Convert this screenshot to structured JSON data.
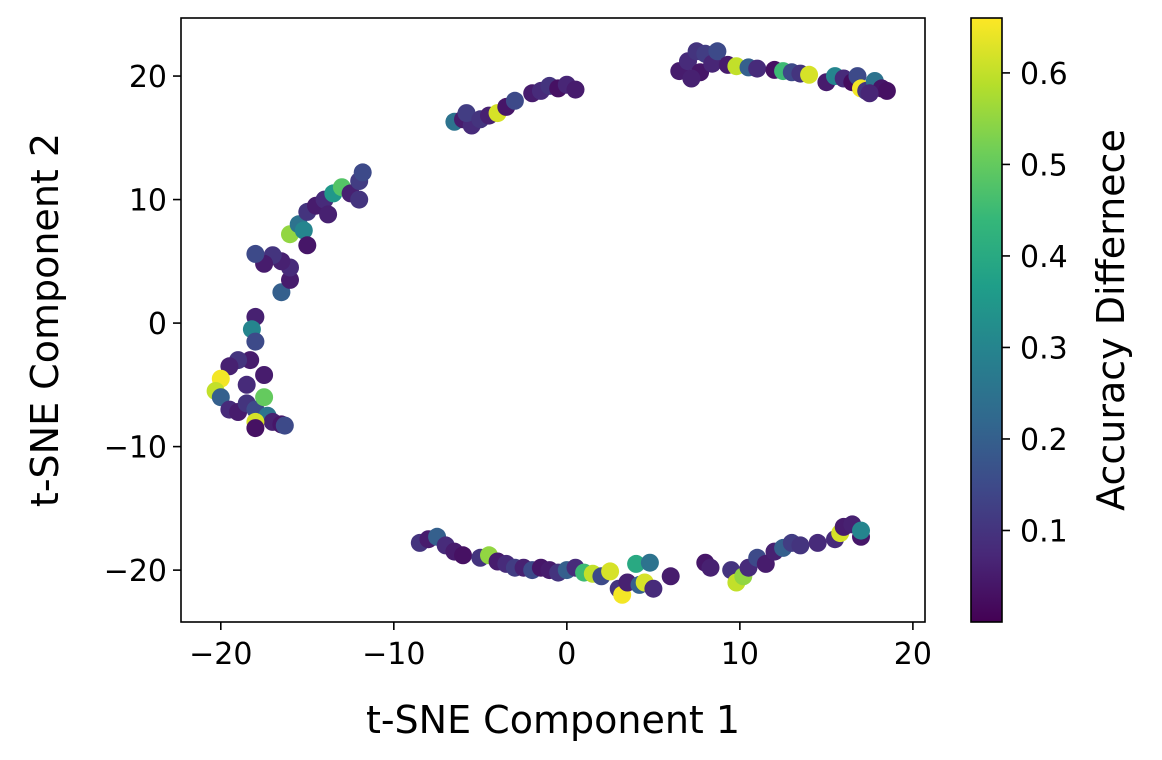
{
  "chart_data": {
    "type": "scatter",
    "title": "",
    "xlabel": "t-SNE Component 1",
    "ylabel": "t-SNE Component 2",
    "xlim": [
      -22.3,
      20.7
    ],
    "ylim": [
      -24.2,
      24.7
    ],
    "xticks": [
      {
        "value": -20,
        "label": "−20"
      },
      {
        "value": -10,
        "label": "−10"
      },
      {
        "value": 0,
        "label": "0"
      },
      {
        "value": 10,
        "label": "10"
      },
      {
        "value": 20,
        "label": "20"
      }
    ],
    "yticks": [
      {
        "value": -20,
        "label": "−20"
      },
      {
        "value": -10,
        "label": "−10"
      },
      {
        "value": 0,
        "label": "0"
      },
      {
        "value": 10,
        "label": "10"
      },
      {
        "value": 20,
        "label": "20"
      }
    ],
    "grid": false,
    "legend": "none",
    "colorbar": {
      "label": "Accuracy Differnece",
      "colormap": "viridis",
      "range": [
        0.0,
        0.66
      ],
      "ticks": [
        {
          "value": 0.1,
          "label": "0.1"
        },
        {
          "value": 0.2,
          "label": "0.2"
        },
        {
          "value": 0.3,
          "label": "0.3"
        },
        {
          "value": 0.4,
          "label": "0.4"
        },
        {
          "value": 0.5,
          "label": "0.5"
        },
        {
          "value": 0.6,
          "label": "0.6"
        }
      ],
      "stops": [
        "#440154",
        "#482878",
        "#3e4989",
        "#31688e",
        "#26828e",
        "#1f9e89",
        "#35b779",
        "#6ece58",
        "#b5de2b",
        "#fde725"
      ]
    },
    "points": [
      [
        6.5,
        20.4,
        0.05
      ],
      [
        7.0,
        21.2,
        0.08
      ],
      [
        7.5,
        22.0,
        0.1
      ],
      [
        7.7,
        20.3,
        0.04
      ],
      [
        7.2,
        19.8,
        0.06
      ],
      [
        8.0,
        21.8,
        0.12
      ],
      [
        8.4,
        21.0,
        0.07
      ],
      [
        8.7,
        22.0,
        0.15
      ],
      [
        9.3,
        20.9,
        0.05
      ],
      [
        9.8,
        20.8,
        0.6
      ],
      [
        10.5,
        20.7,
        0.2
      ],
      [
        11.0,
        20.6,
        0.08
      ],
      [
        12.0,
        20.5,
        0.03
      ],
      [
        12.5,
        20.4,
        0.45
      ],
      [
        13.0,
        20.3,
        0.15
      ],
      [
        13.5,
        20.2,
        0.1
      ],
      [
        14.0,
        20.1,
        0.62
      ],
      [
        15.0,
        19.5,
        0.05
      ],
      [
        15.5,
        20.0,
        0.3
      ],
      [
        16.0,
        19.8,
        0.08
      ],
      [
        16.5,
        19.5,
        0.02
      ],
      [
        16.8,
        20.0,
        0.15
      ],
      [
        17.0,
        19.0,
        0.65
      ],
      [
        17.3,
        18.8,
        0.1
      ],
      [
        17.8,
        19.6,
        0.25
      ],
      [
        18.2,
        19.0,
        0.04
      ],
      [
        18.5,
        18.8,
        0.03
      ],
      [
        17.5,
        18.6,
        0.07
      ],
      [
        -6.5,
        16.3,
        0.25
      ],
      [
        -6.0,
        16.5,
        0.05
      ],
      [
        -5.5,
        16.0,
        0.08
      ],
      [
        -5.8,
        17.0,
        0.12
      ],
      [
        -5.0,
        16.5,
        0.1
      ],
      [
        -4.5,
        16.8,
        0.06
      ],
      [
        -4.0,
        17.0,
        0.62
      ],
      [
        -3.5,
        17.5,
        0.04
      ],
      [
        -3.0,
        18.0,
        0.15
      ],
      [
        -2.0,
        18.6,
        0.05
      ],
      [
        -1.5,
        18.8,
        0.08
      ],
      [
        -1.0,
        19.2,
        0.1
      ],
      [
        -0.5,
        19.0,
        0.03
      ],
      [
        0.0,
        19.3,
        0.07
      ],
      [
        0.5,
        18.9,
        0.05
      ],
      [
        -16.5,
        2.5,
        0.2
      ],
      [
        -16.0,
        3.5,
        0.05
      ],
      [
        -16.0,
        4.5,
        0.08
      ],
      [
        -16.5,
        5.0,
        0.06
      ],
      [
        -17.0,
        5.5,
        0.1
      ],
      [
        -17.5,
        4.8,
        0.05
      ],
      [
        -18.0,
        5.6,
        0.15
      ],
      [
        -16.0,
        7.2,
        0.55
      ],
      [
        -15.5,
        8.0,
        0.25
      ],
      [
        -15.0,
        9.0,
        0.1
      ],
      [
        -14.5,
        9.5,
        0.05
      ],
      [
        -14.0,
        10.0,
        0.08
      ],
      [
        -13.5,
        10.5,
        0.35
      ],
      [
        -13.0,
        11.0,
        0.48
      ],
      [
        -12.5,
        10.5,
        0.06
      ],
      [
        -12.0,
        11.5,
        0.12
      ],
      [
        -11.8,
        12.2,
        0.15
      ],
      [
        -12.0,
        10.0,
        0.1
      ],
      [
        -15.2,
        7.5,
        0.3
      ],
      [
        -15.0,
        6.3,
        0.04
      ],
      [
        -13.8,
        8.8,
        0.06
      ],
      [
        -18.0,
        0.5,
        0.06
      ],
      [
        -18.2,
        -0.5,
        0.3
      ],
      [
        -18.0,
        -1.5,
        0.15
      ],
      [
        -18.3,
        -3.0,
        0.05
      ],
      [
        -19.0,
        -3.0,
        0.1
      ],
      [
        -19.5,
        -3.5,
        0.06
      ],
      [
        -20.0,
        -4.5,
        0.65
      ],
      [
        -20.3,
        -5.5,
        0.6
      ],
      [
        -20.0,
        -6.0,
        0.2
      ],
      [
        -19.5,
        -7.0,
        0.08
      ],
      [
        -19.0,
        -7.2,
        0.05
      ],
      [
        -18.5,
        -6.5,
        0.1
      ],
      [
        -18.0,
        -7.0,
        0.15
      ],
      [
        -17.5,
        -6.0,
        0.5
      ],
      [
        -17.3,
        -7.5,
        0.25
      ],
      [
        -17.0,
        -8.0,
        0.06
      ],
      [
        -16.5,
        -8.2,
        0.04
      ],
      [
        -16.3,
        -8.3,
        0.15
      ],
      [
        -18.0,
        -8.0,
        0.62
      ],
      [
        -17.5,
        -4.2,
        0.05
      ],
      [
        -18.0,
        -8.5,
        0.03
      ],
      [
        -18.5,
        -5.0,
        0.08
      ],
      [
        -8.5,
        -17.8,
        0.1
      ],
      [
        -8.0,
        -17.5,
        0.05
      ],
      [
        -7.5,
        -17.3,
        0.2
      ],
      [
        -7.0,
        -18.0,
        0.08
      ],
      [
        -6.5,
        -18.5,
        0.05
      ],
      [
        -6.0,
        -18.8,
        0.03
      ],
      [
        -5.0,
        -19.0,
        0.1
      ],
      [
        -4.5,
        -18.8,
        0.55
      ],
      [
        -4.0,
        -19.3,
        0.05
      ],
      [
        -3.5,
        -19.5,
        0.08
      ],
      [
        -3.0,
        -19.8,
        0.12
      ],
      [
        -2.5,
        -19.8,
        0.06
      ],
      [
        -2.0,
        -20.0,
        0.15
      ],
      [
        -1.5,
        -19.8,
        0.04
      ],
      [
        -1.0,
        -20.0,
        0.05
      ],
      [
        -0.5,
        -20.2,
        0.1
      ],
      [
        0.0,
        -20.0,
        0.2
      ],
      [
        0.5,
        -19.8,
        0.08
      ],
      [
        1.0,
        -20.2,
        0.45
      ],
      [
        1.5,
        -20.3,
        0.6
      ],
      [
        2.0,
        -20.5,
        0.15
      ],
      [
        2.5,
        -20.1,
        0.62
      ],
      [
        3.0,
        -21.5,
        0.1
      ],
      [
        3.2,
        -22.0,
        0.65
      ],
      [
        3.5,
        -21.0,
        0.06
      ],
      [
        4.0,
        -19.5,
        0.4
      ],
      [
        4.2,
        -21.2,
        0.2
      ],
      [
        4.5,
        -21.0,
        0.62
      ],
      [
        4.8,
        -19.4,
        0.25
      ],
      [
        5.0,
        -21.5,
        0.08
      ],
      [
        6.0,
        -20.5,
        0.05
      ],
      [
        8.0,
        -19.4,
        0.04
      ],
      [
        8.3,
        -19.8,
        0.06
      ],
      [
        9.5,
        -20.0,
        0.1
      ],
      [
        9.8,
        -21.0,
        0.6
      ],
      [
        10.2,
        -20.5,
        0.55
      ],
      [
        10.5,
        -19.8,
        0.08
      ],
      [
        11.0,
        -19.0,
        0.15
      ],
      [
        11.5,
        -19.5,
        0.05
      ],
      [
        12.0,
        -18.5,
        0.06
      ],
      [
        12.5,
        -18.2,
        0.2
      ],
      [
        13.0,
        -17.8,
        0.12
      ],
      [
        13.5,
        -18.0,
        0.1
      ],
      [
        15.5,
        -17.5,
        0.08
      ],
      [
        15.8,
        -17.0,
        0.62
      ],
      [
        16.0,
        -16.5,
        0.05
      ],
      [
        16.5,
        -16.3,
        0.06
      ],
      [
        17.0,
        -17.3,
        0.04
      ],
      [
        17.0,
        -16.8,
        0.3
      ],
      [
        14.5,
        -17.8,
        0.08
      ]
    ]
  }
}
